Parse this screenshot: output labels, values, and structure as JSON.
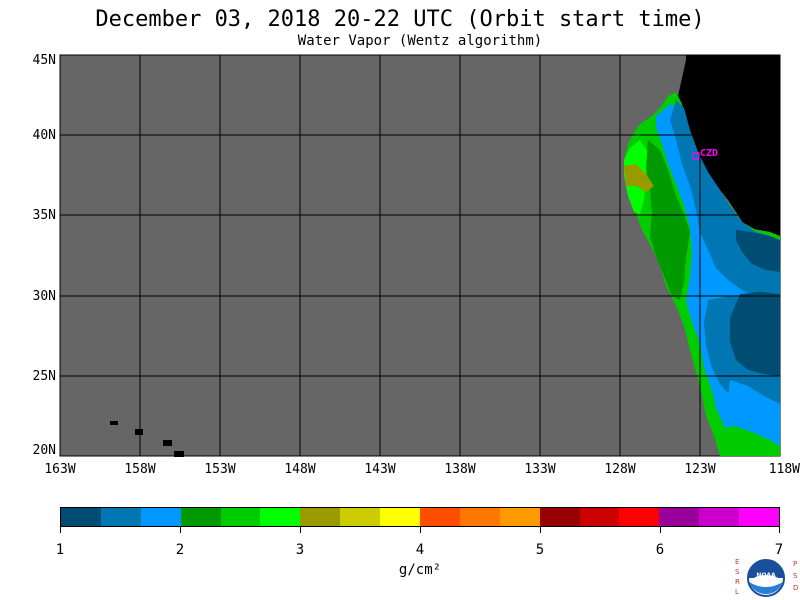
{
  "header": {
    "title": "December 03, 2018  20-22 UTC  (Orbit start time)",
    "subtitle": "Water Vapor (Wentz algorithm)"
  },
  "map": {
    "latitude_labels": [
      "45N",
      "40N",
      "35N",
      "30N",
      "25N",
      "20N"
    ],
    "longitude_labels": [
      "163W",
      "158W",
      "153W",
      "148W",
      "143W",
      "138W",
      "133W",
      "128W",
      "123W",
      "118W"
    ],
    "station_label": "CZD",
    "colors": {
      "no_data": "#666666",
      "land": "#000000",
      "grid": "#000000",
      "station": "#ff00ff"
    }
  },
  "colorbar": {
    "colors": [
      "#004d73",
      "#0077b3",
      "#0099ff",
      "#009900",
      "#00cc00",
      "#00ff00",
      "#999900",
      "#cccc00",
      "#ffff00",
      "#ff4d00",
      "#ff7700",
      "#ff9900",
      "#990000",
      "#cc0000",
      "#ff0000",
      "#990099",
      "#cc00cc",
      "#ff00ff"
    ],
    "tick_labels": [
      "1",
      "2",
      "3",
      "4",
      "5",
      "6",
      "7"
    ],
    "units": "g/cm²"
  },
  "logo": {
    "left_letters": [
      "E",
      "S",
      "R",
      "L"
    ],
    "right_letters": [
      "P",
      "S",
      "D"
    ],
    "center_text": "NOAA"
  }
}
